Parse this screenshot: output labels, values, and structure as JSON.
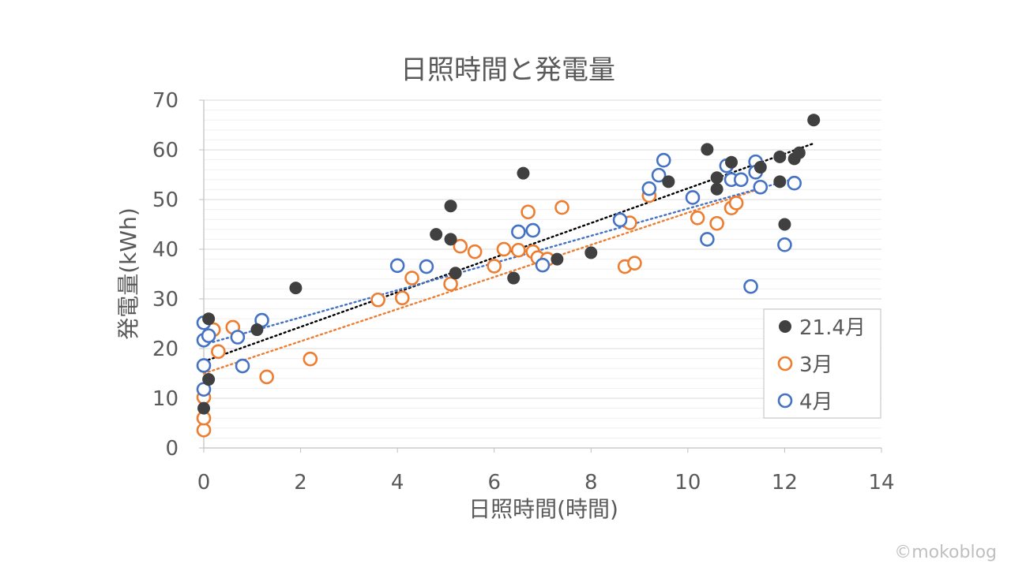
{
  "chart_data": {
    "type": "scatter",
    "title": "日照時間と発電量",
    "xlabel": "日照時間(時間)",
    "ylabel": "発電量(kWh)",
    "xlim": [
      0,
      14
    ],
    "ylim": [
      0,
      70
    ],
    "xticks": [
      "0",
      "2",
      "4",
      "6",
      "8",
      "10",
      "12",
      "14"
    ],
    "yticks": [
      "0",
      "10",
      "20",
      "30",
      "40",
      "50",
      "60",
      "70"
    ],
    "grid": "horizontal major and minor",
    "legend_position": "right",
    "series": [
      {
        "name": "21.4月",
        "marker": "filled-circle",
        "color": "#404040",
        "trendline_color": "#000000",
        "trendline": {
          "x": [
            0,
            12.6
          ],
          "y": [
            17.4,
            61.3
          ]
        },
        "points": [
          [
            0.1,
            26.0
          ],
          [
            0.1,
            13.8
          ],
          [
            0.0,
            8.0
          ],
          [
            1.1,
            23.8
          ],
          [
            1.9,
            32.2
          ],
          [
            4.8,
            43.0
          ],
          [
            5.1,
            48.7
          ],
          [
            5.1,
            42.0
          ],
          [
            5.2,
            35.2
          ],
          [
            6.4,
            34.2
          ],
          [
            6.6,
            55.3
          ],
          [
            7.3,
            38.0
          ],
          [
            8.0,
            39.3
          ],
          [
            9.6,
            53.6
          ],
          [
            10.4,
            60.1
          ],
          [
            10.6,
            54.4
          ],
          [
            10.6,
            52.1
          ],
          [
            10.9,
            57.5
          ],
          [
            11.5,
            56.5
          ],
          [
            11.9,
            58.6
          ],
          [
            11.9,
            53.6
          ],
          [
            12.0,
            45.0
          ],
          [
            12.2,
            58.2
          ],
          [
            12.3,
            59.4
          ],
          [
            12.6,
            66.0
          ]
        ]
      },
      {
        "name": "3月",
        "marker": "open-circle",
        "color": "#ED7D31",
        "trendline_color": "#ED7D31",
        "trendline": {
          "x": [
            0,
            11.5
          ],
          "y": [
            15.0,
            52.2
          ]
        },
        "points": [
          [
            0.0,
            3.6
          ],
          [
            0.0,
            6.0
          ],
          [
            0.0,
            10.2
          ],
          [
            0.2,
            23.8
          ],
          [
            0.3,
            19.4
          ],
          [
            0.6,
            24.3
          ],
          [
            1.3,
            14.3
          ],
          [
            2.2,
            17.9
          ],
          [
            3.6,
            29.8
          ],
          [
            4.1,
            30.2
          ],
          [
            4.3,
            34.2
          ],
          [
            5.1,
            33.0
          ],
          [
            5.3,
            40.6
          ],
          [
            5.6,
            39.5
          ],
          [
            6.0,
            36.6
          ],
          [
            6.2,
            40.0
          ],
          [
            6.5,
            39.8
          ],
          [
            6.7,
            47.5
          ],
          [
            6.8,
            39.5
          ],
          [
            6.9,
            38.3
          ],
          [
            7.1,
            38.0
          ],
          [
            7.4,
            48.4
          ],
          [
            8.7,
            36.5
          ],
          [
            8.8,
            45.3
          ],
          [
            8.9,
            37.2
          ],
          [
            9.2,
            50.8
          ],
          [
            10.2,
            46.3
          ],
          [
            10.6,
            45.2
          ],
          [
            10.9,
            48.3
          ],
          [
            11.0,
            49.3
          ]
        ]
      },
      {
        "name": "4月",
        "marker": "open-circle",
        "color": "#4472C4",
        "trendline_color": "#4472C4",
        "trendline": {
          "x": [
            0,
            12.2
          ],
          "y": [
            20.8,
            54.2
          ]
        },
        "points": [
          [
            0.0,
            11.8
          ],
          [
            0.0,
            16.6
          ],
          [
            0.0,
            21.7
          ],
          [
            0.1,
            22.6
          ],
          [
            0.0,
            25.2
          ],
          [
            0.7,
            22.3
          ],
          [
            0.8,
            16.5
          ],
          [
            1.2,
            25.7
          ],
          [
            4.0,
            36.7
          ],
          [
            4.6,
            36.5
          ],
          [
            6.5,
            43.5
          ],
          [
            6.8,
            43.8
          ],
          [
            7.0,
            36.8
          ],
          [
            8.6,
            45.9
          ],
          [
            9.2,
            52.2
          ],
          [
            9.4,
            54.9
          ],
          [
            9.5,
            57.9
          ],
          [
            10.1,
            50.4
          ],
          [
            10.4,
            42.0
          ],
          [
            10.8,
            56.8
          ],
          [
            10.9,
            54.0
          ],
          [
            11.1,
            54.0
          ],
          [
            11.3,
            32.5
          ],
          [
            11.4,
            57.6
          ],
          [
            11.4,
            55.5
          ],
          [
            11.5,
            52.5
          ],
          [
            12.0,
            40.9
          ],
          [
            12.2,
            53.3
          ]
        ]
      }
    ]
  },
  "watermark": "©mokoblog"
}
